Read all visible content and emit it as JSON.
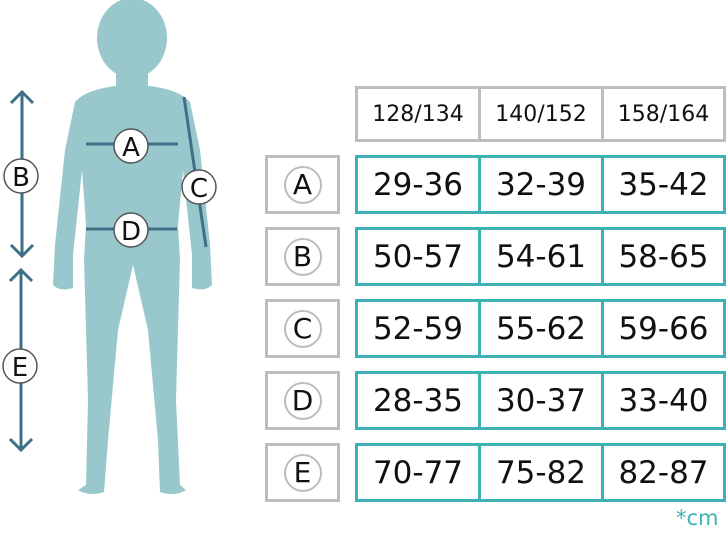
{
  "colors": {
    "accent": "#3cb2b4",
    "silhouette": "#98c8cc",
    "measure_line": "#3e6f86",
    "header_border": "#bdbdbd"
  },
  "figure_labels": [
    "A",
    "B",
    "C",
    "D",
    "E"
  ],
  "table": {
    "sizes": [
      "128/134",
      "140/152",
      "158/164"
    ],
    "rows": [
      {
        "label": "A",
        "values": [
          "29-36",
          "32-39",
          "35-42"
        ]
      },
      {
        "label": "B",
        "values": [
          "50-57",
          "54-61",
          "58-65"
        ]
      },
      {
        "label": "C",
        "values": [
          "52-59",
          "55-62",
          "59-66"
        ]
      },
      {
        "label": "D",
        "values": [
          "28-35",
          "30-37",
          "33-40"
        ]
      },
      {
        "label": "E",
        "values": [
          "70-77",
          "75-82",
          "82-87"
        ]
      }
    ]
  },
  "unit": "*cm"
}
